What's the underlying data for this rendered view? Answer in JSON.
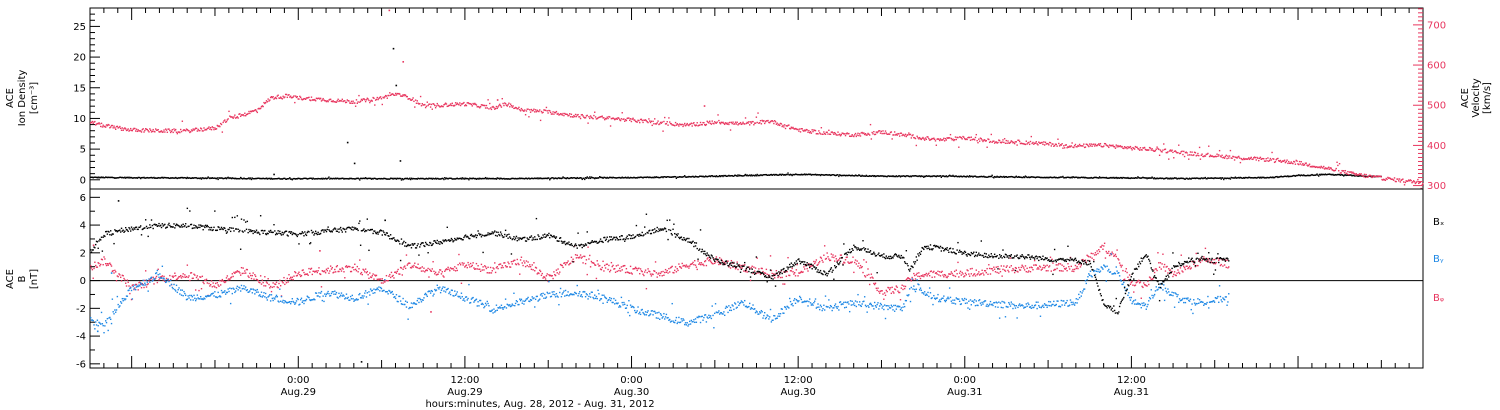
{
  "colors": {
    "axis": "#000000",
    "bx": "#000000",
    "by": "#1e88e5",
    "bz": "#e8365f",
    "density": "#000000",
    "velocity": "#e8365f"
  },
  "chart_data": [
    {
      "id": "plasma",
      "type": "scatter",
      "x_range_hours": [
        -15,
        81
      ],
      "left_axis": {
        "label_lines": [
          "ACE",
          "Ion Density",
          "[cm⁻³]"
        ],
        "ylim": [
          -1.5,
          28
        ],
        "ticks": [
          0,
          5,
          10,
          15,
          20,
          25
        ]
      },
      "right_axis": {
        "label_lines": [
          "ACE",
          "Velocity",
          "[km/s]"
        ],
        "ylim": [
          291.5,
          742
        ],
        "ticks": [
          300,
          400,
          500,
          600,
          700
        ],
        "color": "#e8365f"
      },
      "series": [
        {
          "key": "density",
          "axis": "left",
          "color": "#000000",
          "points": [
            [
              -15,
              0.5
            ],
            [
              -8,
              0.4
            ],
            [
              -2,
              0.3
            ],
            [
              0,
              0.3
            ],
            [
              6,
              0.3
            ],
            [
              10,
              0.3
            ],
            [
              15,
              0.3
            ],
            [
              20,
              0.4
            ],
            [
              25,
              0.5
            ],
            [
              28,
              0.6
            ],
            [
              32,
              0.8
            ],
            [
              34,
              0.9
            ],
            [
              36,
              1.0
            ],
            [
              38,
              0.9
            ],
            [
              42,
              0.7
            ],
            [
              46,
              0.7
            ],
            [
              50,
              0.6
            ],
            [
              54,
              0.5
            ],
            [
              60,
              0.4
            ],
            [
              64,
              0.3
            ],
            [
              70,
              0.5
            ],
            [
              72,
              0.8
            ],
            [
              74,
              1.0
            ],
            [
              76,
              0.8
            ],
            [
              78,
              0.6
            ]
          ],
          "spikes": [
            [
              -1.8,
              1.0
            ],
            [
              3.5,
              6.2
            ],
            [
              4,
              2.8
            ],
            [
              6.8,
              21.5
            ],
            [
              7,
              15.5
            ],
            [
              7.3,
              3.2
            ]
          ]
        },
        {
          "key": "velocity",
          "axis": "right",
          "color": "#e8365f",
          "points": [
            [
              -15,
              460
            ],
            [
              -14,
              450
            ],
            [
              -12,
              440
            ],
            [
              -10,
              438
            ],
            [
              -8,
              438
            ],
            [
              -6,
              445
            ],
            [
              -5,
              470
            ],
            [
              -4,
              478
            ],
            [
              -3,
              490
            ],
            [
              -2,
              520
            ],
            [
              -1,
              525
            ],
            [
              0,
              520
            ],
            [
              2,
              515
            ],
            [
              4,
              510
            ],
            [
              6,
              520
            ],
            [
              7,
              530
            ],
            [
              8,
              520
            ],
            [
              9,
              500
            ],
            [
              12,
              505
            ],
            [
              14,
              495
            ],
            [
              15,
              505
            ],
            [
              16,
              490
            ],
            [
              18,
              485
            ],
            [
              20,
              475
            ],
            [
              22,
              470
            ],
            [
              24,
              465
            ],
            [
              26,
              458
            ],
            [
              28,
              452
            ],
            [
              30,
              460
            ],
            [
              32,
              455
            ],
            [
              34,
              462
            ],
            [
              36,
              440
            ],
            [
              38,
              432
            ],
            [
              40,
              428
            ],
            [
              42,
              435
            ],
            [
              44,
              425
            ],
            [
              46,
              415
            ],
            [
              48,
              420
            ],
            [
              50,
              412
            ],
            [
              52,
              410
            ],
            [
              54,
              405
            ],
            [
              56,
              400
            ],
            [
              58,
              402
            ],
            [
              60,
              395
            ],
            [
              62,
              390
            ],
            [
              64,
              382
            ],
            [
              66,
              376
            ],
            [
              68,
              370
            ],
            [
              70,
              366
            ],
            [
              72,
              358
            ],
            [
              74,
              345
            ],
            [
              76,
              330
            ],
            [
              78,
              320
            ],
            [
              80,
              312
            ],
            [
              81,
              310
            ]
          ],
          "spikes": [
            [
              6.5,
              738
            ],
            [
              7.5,
              610
            ],
            [
              14.3,
              515
            ],
            [
              29.2,
              500
            ]
          ]
        }
      ]
    },
    {
      "id": "field",
      "type": "scatter",
      "x_range_hours": [
        -15,
        81
      ],
      "left_axis": {
        "label_lines": [
          "ACE",
          "B",
          "[nT]"
        ],
        "ylim": [
          -6.3,
          6.6
        ],
        "ticks": [
          -6,
          -4,
          -2,
          0,
          2,
          4,
          6
        ]
      },
      "zero_line": true,
      "legend": [
        "Bₓ",
        "Bᵧ",
        "Bᵩ"
      ],
      "x_ticks": [
        {
          "h": 0,
          "time": "0:00",
          "date": "Aug.29"
        },
        {
          "h": 12,
          "time": "12:00",
          "date": "Aug.29"
        },
        {
          "h": 24,
          "time": "0:00",
          "date": "Aug.30"
        },
        {
          "h": 36,
          "time": "12:00",
          "date": "Aug.30"
        },
        {
          "h": 48,
          "time": "0:00",
          "date": "Aug.31"
        },
        {
          "h": 60,
          "time": "12:00",
          "date": "Aug.31"
        }
      ],
      "xlabel": "hours:minutes, Aug. 28, 2012 - Aug. 31, 2012",
      "series": [
        {
          "key": "Bx",
          "color": "#000000",
          "points": [
            [
              -15,
              2.2
            ],
            [
              -14,
              3.4
            ],
            [
              -12,
              3.8
            ],
            [
              -10,
              4.0
            ],
            [
              -8,
              4.0
            ],
            [
              -6,
              3.8
            ],
            [
              -4,
              3.6
            ],
            [
              -2,
              3.5
            ],
            [
              0,
              3.4
            ],
            [
              2,
              3.6
            ],
            [
              4,
              3.8
            ],
            [
              6,
              3.5
            ],
            [
              8,
              2.5
            ],
            [
              10,
              2.8
            ],
            [
              12,
              3.2
            ],
            [
              14,
              3.5
            ],
            [
              16,
              3.0
            ],
            [
              18,
              3.3
            ],
            [
              20,
              2.5
            ],
            [
              22,
              3.0
            ],
            [
              24,
              3.2
            ],
            [
              26,
              3.8
            ],
            [
              28,
              3.0
            ],
            [
              30,
              1.5
            ],
            [
              32,
              1.0
            ],
            [
              34,
              0.2
            ],
            [
              36,
              1.5
            ],
            [
              38,
              0.5
            ],
            [
              40,
              2.5
            ],
            [
              42,
              1.8
            ],
            [
              43.5,
              1.8
            ],
            [
              44,
              0.8
            ],
            [
              45,
              2.5
            ],
            [
              46,
              2.4
            ],
            [
              48,
              2.0
            ],
            [
              50,
              1.8
            ],
            [
              52,
              1.8
            ],
            [
              54,
              1.6
            ],
            [
              56,
              1.5
            ],
            [
              57,
              1.3
            ],
            [
              58,
              -1.8
            ],
            [
              59,
              -2.2
            ],
            [
              60,
              0.5
            ],
            [
              61,
              2.0
            ],
            [
              62,
              -0.5
            ],
            [
              63,
              1.0
            ],
            [
              64,
              1.5
            ],
            [
              65,
              1.5
            ],
            [
              66,
              1.5
            ],
            [
              67,
              1.6
            ]
          ],
          "spikes": [
            [
              -13,
              5.8
            ],
            [
              4.5,
              -5.8
            ],
            [
              6.2,
              4.4
            ]
          ]
        },
        {
          "key": "By",
          "color": "#1e88e5",
          "points": [
            [
              -15,
              -2.8
            ],
            [
              -14,
              -3.2
            ],
            [
              -12,
              -0.5
            ],
            [
              -10,
              0.5
            ],
            [
              -8,
              -1.2
            ],
            [
              -6,
              -1.0
            ],
            [
              -4,
              -0.5
            ],
            [
              -2,
              -1.2
            ],
            [
              0,
              -1.5
            ],
            [
              2,
              -0.8
            ],
            [
              4,
              -1.2
            ],
            [
              6,
              -0.5
            ],
            [
              8,
              -1.8
            ],
            [
              10,
              -0.5
            ],
            [
              12,
              -1.2
            ],
            [
              14,
              -2.0
            ],
            [
              16,
              -1.5
            ],
            [
              18,
              -1.0
            ],
            [
              20,
              -0.8
            ],
            [
              22,
              -1.2
            ],
            [
              24,
              -2.0
            ],
            [
              26,
              -2.5
            ],
            [
              28,
              -3.0
            ],
            [
              30,
              -2.4
            ],
            [
              32,
              -1.5
            ],
            [
              34,
              -2.8
            ],
            [
              36,
              -1.2
            ],
            [
              38,
              -2.0
            ],
            [
              40,
              -1.6
            ],
            [
              42,
              -1.8
            ],
            [
              43.5,
              -2.0
            ],
            [
              44,
              -0.5
            ],
            [
              45,
              -0.8
            ],
            [
              46,
              -1.2
            ],
            [
              48,
              -1.5
            ],
            [
              50,
              -1.6
            ],
            [
              52,
              -1.8
            ],
            [
              54,
              -1.7
            ],
            [
              56,
              -1.5
            ],
            [
              57,
              0.5
            ],
            [
              58,
              1.0
            ],
            [
              59,
              0.5
            ],
            [
              60,
              -1.5
            ],
            [
              61,
              -1.8
            ],
            [
              62,
              -0.2
            ],
            [
              63,
              -1.0
            ],
            [
              64,
              -1.4
            ],
            [
              65,
              -1.5
            ],
            [
              66,
              -1.4
            ],
            [
              67,
              -1.1
            ]
          ],
          "spikes": [
            [
              -14.5,
              -3.6
            ],
            [
              -13.5,
              0.6
            ]
          ]
        },
        {
          "key": "Bz",
          "color": "#e8365f",
          "points": [
            [
              -15,
              1.0
            ],
            [
              -14,
              1.5
            ],
            [
              -12,
              -0.5
            ],
            [
              -10,
              0.2
            ],
            [
              -8,
              0.5
            ],
            [
              -6,
              -0.3
            ],
            [
              -4,
              0.8
            ],
            [
              -2,
              -0.5
            ],
            [
              0,
              0.6
            ],
            [
              2,
              0.8
            ],
            [
              4,
              1.0
            ],
            [
              6,
              0.0
            ],
            [
              8,
              1.2
            ],
            [
              10,
              0.5
            ],
            [
              12,
              1.2
            ],
            [
              14,
              0.8
            ],
            [
              16,
              1.5
            ],
            [
              18,
              0.2
            ],
            [
              20,
              1.8
            ],
            [
              22,
              1.0
            ],
            [
              24,
              0.8
            ],
            [
              26,
              0.5
            ],
            [
              28,
              1.2
            ],
            [
              30,
              1.5
            ],
            [
              32,
              1.0
            ],
            [
              34,
              0.5
            ],
            [
              36,
              0.6
            ],
            [
              38,
              1.8
            ],
            [
              40,
              1.5
            ],
            [
              42,
              -0.8
            ],
            [
              43.5,
              -0.5
            ],
            [
              44,
              0.2
            ],
            [
              45,
              0.5
            ],
            [
              46,
              0.5
            ],
            [
              48,
              0.6
            ],
            [
              50,
              0.8
            ],
            [
              52,
              0.9
            ],
            [
              54,
              1.0
            ],
            [
              56,
              1.0
            ],
            [
              57,
              1.8
            ],
            [
              58,
              2.5
            ],
            [
              59,
              1.5
            ],
            [
              60,
              0.0
            ],
            [
              61,
              -0.3
            ],
            [
              62,
              1.2
            ],
            [
              63,
              0.5
            ],
            [
              64,
              1.0
            ],
            [
              65,
              1.5
            ],
            [
              66,
              1.5
            ],
            [
              67,
              1.2
            ]
          ],
          "spikes": [
            [
              -14.8,
              2.6
            ],
            [
              1.5,
              2.2
            ],
            [
              9.5,
              -2.2
            ]
          ]
        }
      ]
    }
  ]
}
